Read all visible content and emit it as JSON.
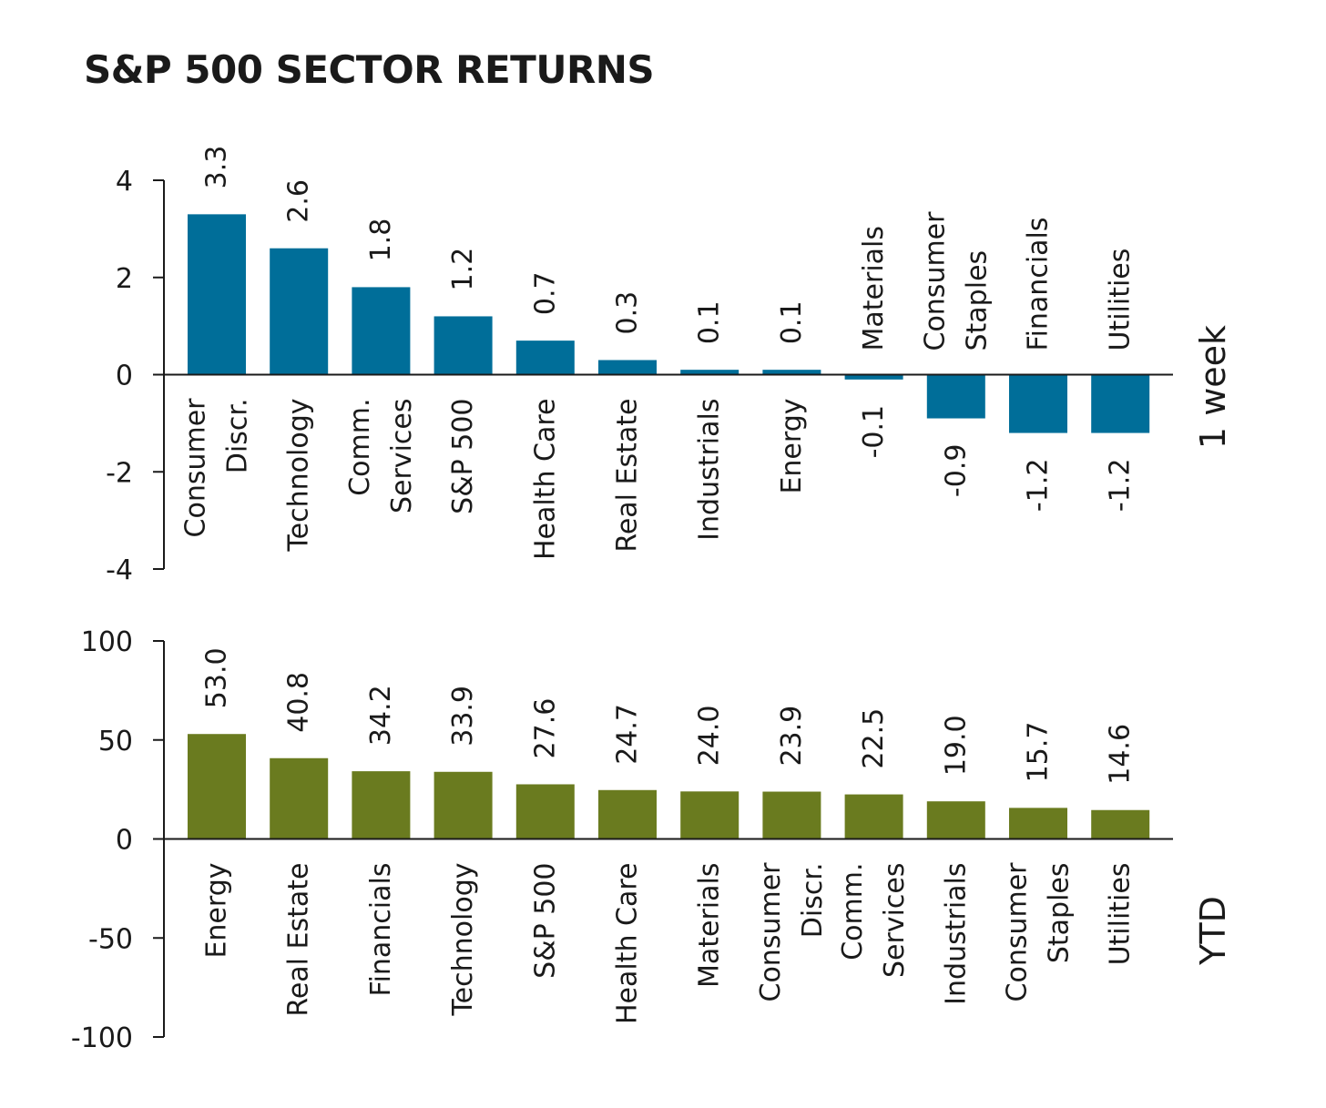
{
  "title": "S&P 500 SECTOR RETURNS",
  "chart_data": [
    {
      "type": "bar",
      "panel_label": "1 week",
      "color": "#006e99",
      "ylim": [
        -4,
        4
      ],
      "yticks": [
        4,
        2,
        0,
        -2,
        -4
      ],
      "categories": [
        [
          "Consumer",
          "Discr."
        ],
        [
          "Technology"
        ],
        [
          "Comm.",
          "Services"
        ],
        [
          "S&P 500"
        ],
        [
          "Health Care"
        ],
        [
          "Real Estate"
        ],
        [
          "Industrials"
        ],
        [
          "Energy"
        ],
        [
          "Materials"
        ],
        [
          "Consumer",
          "Staples"
        ],
        [
          "Financials"
        ],
        [
          "Utilities"
        ]
      ],
      "values": [
        3.3,
        2.6,
        1.8,
        1.2,
        0.7,
        0.3,
        0.1,
        0.1,
        -0.1,
        -0.9,
        -1.2,
        -1.2
      ],
      "value_labels": [
        "3.3",
        "2.6",
        "1.8",
        "1.2",
        "0.7",
        "0.3",
        "0.1",
        "0.1",
        "-0.1",
        "-0.9",
        "-1.2",
        "-1.2"
      ]
    },
    {
      "type": "bar",
      "panel_label": "YTD",
      "color": "#6a7b1f",
      "ylim": [
        -100,
        100
      ],
      "yticks": [
        100,
        50,
        0,
        -50,
        -100
      ],
      "categories": [
        [
          "Energy"
        ],
        [
          "Real Estate"
        ],
        [
          "Financials"
        ],
        [
          "Technology"
        ],
        [
          "S&P 500"
        ],
        [
          "Health Care"
        ],
        [
          "Materials"
        ],
        [
          "Consumer",
          "Discr."
        ],
        [
          "Comm.",
          "Services"
        ],
        [
          "Industrials"
        ],
        [
          "Consumer",
          "Staples"
        ],
        [
          "Utilities"
        ]
      ],
      "values": [
        53.0,
        40.8,
        34.2,
        33.9,
        27.6,
        24.7,
        24.0,
        23.9,
        22.5,
        19.0,
        15.7,
        14.6
      ],
      "value_labels": [
        "53.0",
        "40.8",
        "34.2",
        "33.9",
        "27.6",
        "24.7",
        "24.0",
        "23.9",
        "22.5",
        "19.0",
        "15.7",
        "14.6"
      ]
    }
  ]
}
